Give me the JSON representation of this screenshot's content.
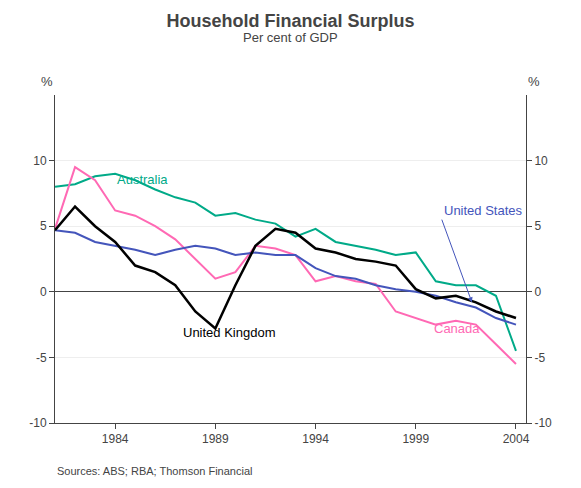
{
  "chart_data": {
    "type": "line",
    "title": "Household Financial Surplus",
    "subtitle": "Per cent of GDP",
    "source": "Sources: ABS; RBA; Thomson Financial",
    "ylabel": "%",
    "y2label": "%",
    "x": [
      1981,
      1982,
      1983,
      1984,
      1985,
      1986,
      1987,
      1988,
      1989,
      1990,
      1991,
      1992,
      1993,
      1994,
      1995,
      1996,
      1997,
      1998,
      1999,
      2000,
      2001,
      2002,
      2003,
      2004
    ],
    "xlim": [
      1981.0,
      2004.5
    ],
    "xticks": [
      1984,
      1989,
      1994,
      1999,
      2004
    ],
    "ylim": [
      -10,
      15
    ],
    "yticks": [
      -10,
      -5,
      0,
      5,
      10
    ],
    "y2lim": [
      -10,
      15
    ],
    "y2ticks": [
      -10,
      -5,
      0,
      5,
      10
    ],
    "grid": "y",
    "series": [
      {
        "name": "Australia",
        "color": "#00aa88",
        "values": [
          8.0,
          8.2,
          8.8,
          9.0,
          8.5,
          7.8,
          7.2,
          6.8,
          5.8,
          6.0,
          5.5,
          5.2,
          4.2,
          4.8,
          3.8,
          3.5,
          3.2,
          2.8,
          3.0,
          0.8,
          0.5,
          0.5,
          -0.3,
          -4.5
        ]
      },
      {
        "name": "Canada",
        "color": "#ff69b4",
        "values": [
          4.8,
          9.5,
          8.5,
          6.2,
          5.8,
          5.0,
          4.0,
          2.5,
          1.0,
          1.5,
          3.5,
          3.3,
          2.8,
          0.8,
          1.2,
          0.8,
          0.6,
          -1.5,
          -2.0,
          -2.5,
          -2.2,
          -2.5,
          -4.0,
          -5.5
        ]
      },
      {
        "name": "United States",
        "color": "#4455bb",
        "values": [
          4.7,
          4.5,
          3.8,
          3.5,
          3.2,
          2.8,
          3.2,
          3.5,
          3.3,
          2.8,
          3.0,
          2.8,
          2.8,
          1.8,
          1.2,
          1.0,
          0.5,
          0.2,
          0.0,
          -0.3,
          -0.8,
          -1.2,
          -2.0,
          -2.5
        ]
      },
      {
        "name": "United Kingdom",
        "color": "#000000",
        "values": [
          4.7,
          6.5,
          5.0,
          3.8,
          2.0,
          1.5,
          0.5,
          -1.5,
          -2.8,
          0.5,
          3.5,
          4.8,
          4.5,
          3.3,
          3.0,
          2.5,
          2.3,
          2.0,
          0.2,
          -0.5,
          -0.3,
          -0.8,
          -1.5,
          -2.0
        ]
      }
    ],
    "annotations": [
      {
        "text": "Australia",
        "x": 1984.0,
        "y": 7.8,
        "color": "#00aa88"
      },
      {
        "text": "Canada",
        "x": 1999.8,
        "y": -3.5,
        "color": "#ff69b4"
      },
      {
        "text": "United Kingdom",
        "x": 1987.3,
        "y": -3.8,
        "color": "#000000"
      },
      {
        "text": "United States",
        "x": 2000.3,
        "y": 5.5,
        "arrow_x": 2001.8,
        "arrow_y": -0.8,
        "color": "#4455bb"
      }
    ]
  }
}
